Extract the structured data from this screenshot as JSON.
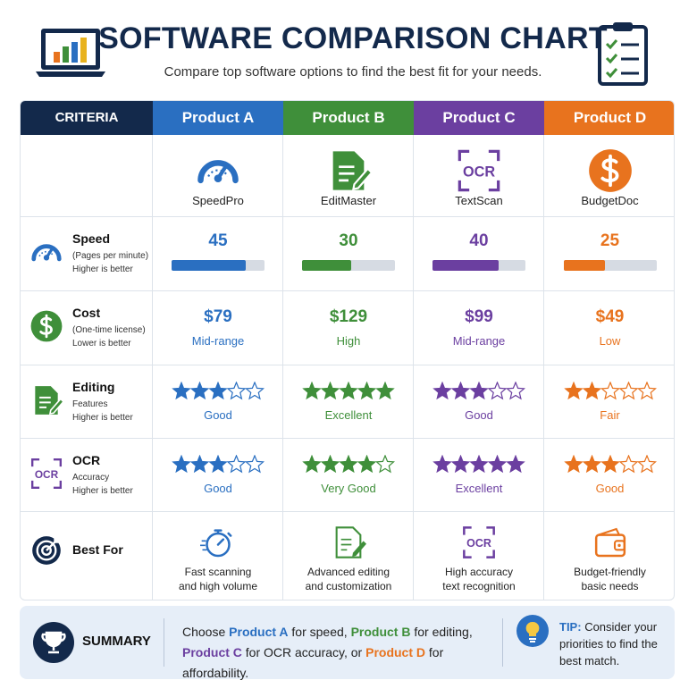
{
  "header": {
    "title": "SOFTWARE COMPARISON CHART",
    "subtitle": "Compare top software options to find the best fit for your needs."
  },
  "table": {
    "criteria_header": "CRITERIA",
    "products": [
      {
        "name": "Product A",
        "tool": "SpeedPro",
        "color": "#2a6fc1"
      },
      {
        "name": "Product B",
        "tool": "EditMaster",
        "color": "#3f8f3a"
      },
      {
        "name": "Product C",
        "tool": "TextScan",
        "color": "#6b3fa0"
      },
      {
        "name": "Product D",
        "tool": "BudgetDoc",
        "color": "#e8731e"
      }
    ],
    "rows": [
      {
        "label": "Speed",
        "note": "(Pages per minute)",
        "direction": "Higher is better",
        "values": [
          45,
          30,
          40,
          25
        ]
      },
      {
        "label": "Cost",
        "note": "(One-time license)",
        "direction": "Lower is better",
        "values": [
          "$79",
          "$129",
          "$99",
          "$49"
        ],
        "levels": [
          "Mid-range",
          "High",
          "Mid-range",
          "Low"
        ]
      },
      {
        "label": "Editing",
        "note": "Features",
        "direction": "Higher is better",
        "stars": [
          3,
          5,
          3,
          2
        ],
        "ratings": [
          "Good",
          "Excellent",
          "Good",
          "Fair"
        ]
      },
      {
        "label": "OCR",
        "note": "Accuracy",
        "direction": "Higher is better",
        "stars": [
          3,
          4,
          5,
          3
        ],
        "ratings": [
          "Good",
          "Very Good",
          "Excellent",
          "Good"
        ]
      },
      {
        "label": "Best For",
        "descriptions": [
          [
            "Fast scanning",
            "and high volume"
          ],
          [
            "Advanced editing",
            "and customization"
          ],
          [
            "High accuracy",
            "text recognition"
          ],
          [
            "Budget-friendly",
            "basic needs"
          ]
        ]
      }
    ]
  },
  "summary": {
    "label": "SUMMARY",
    "text": [
      {
        "text": "Choose "
      },
      {
        "text": "Product A",
        "color": "#2a6fc1"
      },
      {
        "text": " for speed, "
      },
      {
        "text": "Product B",
        "color": "#3f8f3a"
      },
      {
        "text": " for editing, "
      },
      {
        "text": "Product C",
        "color": "#6b3fa0"
      },
      {
        "text": " for OCR accuracy, or "
      },
      {
        "text": "Product D",
        "color": "#e8731e"
      },
      {
        "text": " for affordability."
      }
    ],
    "tip_label": "TIP:",
    "tip": "Consider your priorities to find the best match."
  }
}
